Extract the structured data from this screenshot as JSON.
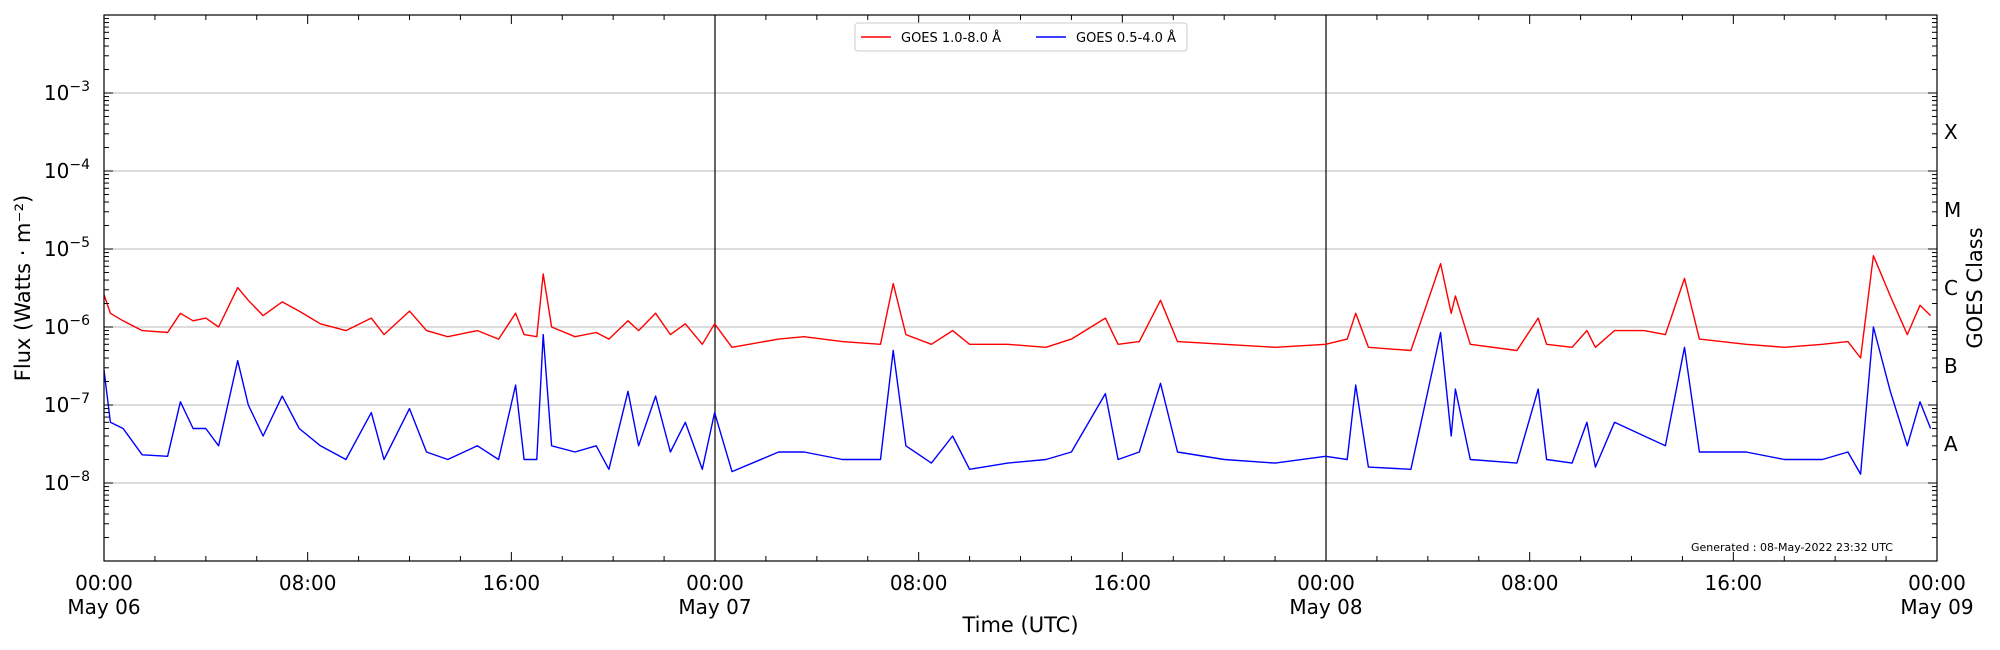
{
  "chart_data": {
    "type": "line",
    "xlabel": "Time (UTC)",
    "ylabel": "Flux (Watts · m⁻²)",
    "y2label": "GOES Class",
    "yscale": "log",
    "ylim": [
      1e-09,
      0.01
    ],
    "xlim": [
      "2022-05-06 00:00",
      "2022-05-09 00:00"
    ],
    "grid": "horizontal",
    "legend_position": "top-center",
    "x_ticks": [
      {
        "t": "2022-05-06 00:00",
        "line1": "00:00",
        "line2": "May 06"
      },
      {
        "t": "2022-05-06 08:00",
        "line1": "08:00",
        "line2": ""
      },
      {
        "t": "2022-05-06 16:00",
        "line1": "16:00",
        "line2": ""
      },
      {
        "t": "2022-05-07 00:00",
        "line1": "00:00",
        "line2": "May 07"
      },
      {
        "t": "2022-05-07 08:00",
        "line1": "08:00",
        "line2": ""
      },
      {
        "t": "2022-05-07 16:00",
        "line1": "16:00",
        "line2": ""
      },
      {
        "t": "2022-05-08 00:00",
        "line1": "00:00",
        "line2": "May 08"
      },
      {
        "t": "2022-05-08 08:00",
        "line1": "08:00",
        "line2": ""
      },
      {
        "t": "2022-05-08 16:00",
        "line1": "16:00",
        "line2": ""
      },
      {
        "t": "2022-05-09 00:00",
        "line1": "00:00",
        "line2": "May 09"
      }
    ],
    "day_boundaries": [
      "2022-05-07 00:00",
      "2022-05-08 00:00"
    ],
    "y_ticks": [
      {
        "value": 1e-08,
        "exp": "−8"
      },
      {
        "value": 1e-07,
        "exp": "−7"
      },
      {
        "value": 1e-06,
        "exp": "−6"
      },
      {
        "value": 1e-05,
        "exp": "−5"
      },
      {
        "value": 0.0001,
        "exp": "−4"
      },
      {
        "value": 0.001,
        "exp": "−3"
      }
    ],
    "goes_classes": [
      {
        "label": "A",
        "value": 3.16e-08
      },
      {
        "label": "B",
        "value": 3.16e-07
      },
      {
        "label": "C",
        "value": 3.16e-06
      },
      {
        "label": "M",
        "value": 3.16e-05
      },
      {
        "label": "X",
        "value": 0.000316
      }
    ],
    "annotation": "Generated : 08-May-2022 23:32 UTC",
    "series": [
      {
        "name": "GOES 1.0-8.0 Å",
        "color": "#ff0000",
        "points": [
          [
            "2022-05-06 00:00",
            2.6e-06
          ],
          [
            "2022-05-06 00:15",
            1.5e-06
          ],
          [
            "2022-05-06 00:45",
            1.2e-06
          ],
          [
            "2022-05-06 01:30",
            9e-07
          ],
          [
            "2022-05-06 02:30",
            8.5e-07
          ],
          [
            "2022-05-06 03:00",
            1.5e-06
          ],
          [
            "2022-05-06 03:30",
            1.2e-06
          ],
          [
            "2022-05-06 04:00",
            1.3e-06
          ],
          [
            "2022-05-06 04:30",
            1e-06
          ],
          [
            "2022-05-06 05:15",
            3.2e-06
          ],
          [
            "2022-05-06 05:40",
            2.2e-06
          ],
          [
            "2022-05-06 06:15",
            1.4e-06
          ],
          [
            "2022-05-06 07:00",
            2.1e-06
          ],
          [
            "2022-05-06 07:40",
            1.6e-06
          ],
          [
            "2022-05-06 08:30",
            1.1e-06
          ],
          [
            "2022-05-06 09:30",
            9e-07
          ],
          [
            "2022-05-06 10:30",
            1.3e-06
          ],
          [
            "2022-05-06 11:00",
            8e-07
          ],
          [
            "2022-05-06 12:00",
            1.6e-06
          ],
          [
            "2022-05-06 12:40",
            9e-07
          ],
          [
            "2022-05-06 13:30",
            7.5e-07
          ],
          [
            "2022-05-06 14:40",
            9e-07
          ],
          [
            "2022-05-06 15:30",
            7e-07
          ],
          [
            "2022-05-06 16:10",
            1.5e-06
          ],
          [
            "2022-05-06 16:30",
            8e-07
          ],
          [
            "2022-05-06 17:00",
            7.5e-07
          ],
          [
            "2022-05-06 17:15",
            4.8e-06
          ],
          [
            "2022-05-06 17:35",
            1e-06
          ],
          [
            "2022-05-06 18:30",
            7.5e-07
          ],
          [
            "2022-05-06 19:20",
            8.5e-07
          ],
          [
            "2022-05-06 19:50",
            7e-07
          ],
          [
            "2022-05-06 20:35",
            1.2e-06
          ],
          [
            "2022-05-06 21:00",
            9e-07
          ],
          [
            "2022-05-06 21:40",
            1.5e-06
          ],
          [
            "2022-05-06 22:15",
            8e-07
          ],
          [
            "2022-05-06 22:50",
            1.1e-06
          ],
          [
            "2022-05-06 23:30",
            6e-07
          ],
          [
            "2022-05-06 23:59",
            1.1e-06
          ],
          [
            "2022-05-07 00:40",
            5.5e-07
          ],
          [
            "2022-05-07 02:30",
            7e-07
          ],
          [
            "2022-05-07 03:30",
            7.5e-07
          ],
          [
            "2022-05-07 05:00",
            6.5e-07
          ],
          [
            "2022-05-07 06:30",
            6e-07
          ],
          [
            "2022-05-07 07:00",
            3.6e-06
          ],
          [
            "2022-05-07 07:30",
            8e-07
          ],
          [
            "2022-05-07 08:30",
            6e-07
          ],
          [
            "2022-05-07 09:20",
            9e-07
          ],
          [
            "2022-05-07 10:00",
            6e-07
          ],
          [
            "2022-05-07 11:30",
            6e-07
          ],
          [
            "2022-05-07 13:00",
            5.5e-07
          ],
          [
            "2022-05-07 14:00",
            7e-07
          ],
          [
            "2022-05-07 15:20",
            1.3e-06
          ],
          [
            "2022-05-07 15:50",
            6e-07
          ],
          [
            "2022-05-07 16:40",
            6.5e-07
          ],
          [
            "2022-05-07 17:30",
            2.2e-06
          ],
          [
            "2022-05-07 18:10",
            6.5e-07
          ],
          [
            "2022-05-07 20:00",
            6e-07
          ],
          [
            "2022-05-07 22:00",
            5.5e-07
          ],
          [
            "2022-05-07 23:59",
            6e-07
          ],
          [
            "2022-05-08 00:50",
            7e-07
          ],
          [
            "2022-05-08 01:10",
            1.5e-06
          ],
          [
            "2022-05-08 01:40",
            5.5e-07
          ],
          [
            "2022-05-08 03:20",
            5e-07
          ],
          [
            "2022-05-08 04:30",
            6.5e-06
          ],
          [
            "2022-05-08 04:55",
            1.5e-06
          ],
          [
            "2022-05-08 05:05",
            2.5e-06
          ],
          [
            "2022-05-08 05:40",
            6e-07
          ],
          [
            "2022-05-08 07:30",
            5e-07
          ],
          [
            "2022-05-08 08:20",
            1.3e-06
          ],
          [
            "2022-05-08 08:40",
            6e-07
          ],
          [
            "2022-05-08 09:40",
            5.5e-07
          ],
          [
            "2022-05-08 10:15",
            9e-07
          ],
          [
            "2022-05-08 10:35",
            5.5e-07
          ],
          [
            "2022-05-08 11:20",
            9e-07
          ],
          [
            "2022-05-08 12:30",
            9e-07
          ],
          [
            "2022-05-08 13:20",
            8e-07
          ],
          [
            "2022-05-08 14:05",
            4.2e-06
          ],
          [
            "2022-05-08 14:40",
            7e-07
          ],
          [
            "2022-05-08 16:30",
            6e-07
          ],
          [
            "2022-05-08 18:00",
            5.5e-07
          ],
          [
            "2022-05-08 19:30",
            6e-07
          ],
          [
            "2022-05-08 20:30",
            6.5e-07
          ],
          [
            "2022-05-08 21:00",
            4e-07
          ],
          [
            "2022-05-08 21:30",
            8.2e-06
          ],
          [
            "2022-05-08 22:10",
            2.5e-06
          ],
          [
            "2022-05-08 22:50",
            8e-07
          ],
          [
            "2022-05-08 23:20",
            1.9e-06
          ],
          [
            "2022-05-08 23:45",
            1.4e-06
          ]
        ]
      },
      {
        "name": "GOES 0.5-4.0 Å",
        "color": "#0000ff",
        "points": [
          [
            "2022-05-06 00:00",
            2.8e-07
          ],
          [
            "2022-05-06 00:15",
            6e-08
          ],
          [
            "2022-05-06 00:45",
            5e-08
          ],
          [
            "2022-05-06 01:30",
            2.3e-08
          ],
          [
            "2022-05-06 02:30",
            2.2e-08
          ],
          [
            "2022-05-06 03:00",
            1.1e-07
          ],
          [
            "2022-05-06 03:30",
            5e-08
          ],
          [
            "2022-05-06 04:00",
            5e-08
          ],
          [
            "2022-05-06 04:30",
            3e-08
          ],
          [
            "2022-05-06 05:15",
            3.7e-07
          ],
          [
            "2022-05-06 05:40",
            1e-07
          ],
          [
            "2022-05-06 06:15",
            4e-08
          ],
          [
            "2022-05-06 07:00",
            1.3e-07
          ],
          [
            "2022-05-06 07:40",
            5e-08
          ],
          [
            "2022-05-06 08:30",
            3e-08
          ],
          [
            "2022-05-06 09:30",
            2e-08
          ],
          [
            "2022-05-06 10:30",
            8e-08
          ],
          [
            "2022-05-06 11:00",
            2e-08
          ],
          [
            "2022-05-06 12:00",
            9e-08
          ],
          [
            "2022-05-06 12:40",
            2.5e-08
          ],
          [
            "2022-05-06 13:30",
            2e-08
          ],
          [
            "2022-05-06 14:40",
            3e-08
          ],
          [
            "2022-05-06 15:30",
            2e-08
          ],
          [
            "2022-05-06 16:10",
            1.8e-07
          ],
          [
            "2022-05-06 16:30",
            2e-08
          ],
          [
            "2022-05-06 17:00",
            2e-08
          ],
          [
            "2022-05-06 17:15",
            8e-07
          ],
          [
            "2022-05-06 17:35",
            3e-08
          ],
          [
            "2022-05-06 18:30",
            2.5e-08
          ],
          [
            "2022-05-06 19:20",
            3e-08
          ],
          [
            "2022-05-06 19:50",
            1.5e-08
          ],
          [
            "2022-05-06 20:35",
            1.5e-07
          ],
          [
            "2022-05-06 21:00",
            3e-08
          ],
          [
            "2022-05-06 21:40",
            1.3e-07
          ],
          [
            "2022-05-06 22:15",
            2.5e-08
          ],
          [
            "2022-05-06 22:50",
            6e-08
          ],
          [
            "2022-05-06 23:30",
            1.5e-08
          ],
          [
            "2022-05-06 23:59",
            8e-08
          ],
          [
            "2022-05-07 00:40",
            1.4e-08
          ],
          [
            "2022-05-07 02:30",
            2.5e-08
          ],
          [
            "2022-05-07 03:30",
            2.5e-08
          ],
          [
            "2022-05-07 05:00",
            2e-08
          ],
          [
            "2022-05-07 06:30",
            2e-08
          ],
          [
            "2022-05-07 07:00",
            5e-07
          ],
          [
            "2022-05-07 07:30",
            3e-08
          ],
          [
            "2022-05-07 08:30",
            1.8e-08
          ],
          [
            "2022-05-07 09:20",
            4e-08
          ],
          [
            "2022-05-07 10:00",
            1.5e-08
          ],
          [
            "2022-05-07 11:30",
            1.8e-08
          ],
          [
            "2022-05-07 13:00",
            2e-08
          ],
          [
            "2022-05-07 14:00",
            2.5e-08
          ],
          [
            "2022-05-07 15:20",
            1.4e-07
          ],
          [
            "2022-05-07 15:50",
            2e-08
          ],
          [
            "2022-05-07 16:40",
            2.5e-08
          ],
          [
            "2022-05-07 17:30",
            1.9e-07
          ],
          [
            "2022-05-07 18:10",
            2.5e-08
          ],
          [
            "2022-05-07 20:00",
            2e-08
          ],
          [
            "2022-05-07 22:00",
            1.8e-08
          ],
          [
            "2022-05-07 23:59",
            2.2e-08
          ],
          [
            "2022-05-08 00:50",
            2e-08
          ],
          [
            "2022-05-08 01:10",
            1.8e-07
          ],
          [
            "2022-05-08 01:40",
            1.6e-08
          ],
          [
            "2022-05-08 03:20",
            1.5e-08
          ],
          [
            "2022-05-08 04:30",
            8.5e-07
          ],
          [
            "2022-05-08 04:55",
            4e-08
          ],
          [
            "2022-05-08 05:05",
            1.6e-07
          ],
          [
            "2022-05-08 05:40",
            2e-08
          ],
          [
            "2022-05-08 07:30",
            1.8e-08
          ],
          [
            "2022-05-08 08:20",
            1.6e-07
          ],
          [
            "2022-05-08 08:40",
            2e-08
          ],
          [
            "2022-05-08 09:40",
            1.8e-08
          ],
          [
            "2022-05-08 10:15",
            6e-08
          ],
          [
            "2022-05-08 10:35",
            1.6e-08
          ],
          [
            "2022-05-08 11:20",
            6e-08
          ],
          [
            "2022-05-08 12:30",
            4e-08
          ],
          [
            "2022-05-08 13:20",
            3e-08
          ],
          [
            "2022-05-08 14:05",
            5.5e-07
          ],
          [
            "2022-05-08 14:40",
            2.5e-08
          ],
          [
            "2022-05-08 16:30",
            2.5e-08
          ],
          [
            "2022-05-08 18:00",
            2e-08
          ],
          [
            "2022-05-08 19:30",
            2e-08
          ],
          [
            "2022-05-08 20:30",
            2.5e-08
          ],
          [
            "2022-05-08 21:00",
            1.3e-08
          ],
          [
            "2022-05-08 21:30",
            1e-06
          ],
          [
            "2022-05-08 22:10",
            1.5e-07
          ],
          [
            "2022-05-08 22:50",
            3e-08
          ],
          [
            "2022-05-08 23:20",
            1.1e-07
          ],
          [
            "2022-05-08 23:45",
            5e-08
          ]
        ]
      }
    ]
  }
}
